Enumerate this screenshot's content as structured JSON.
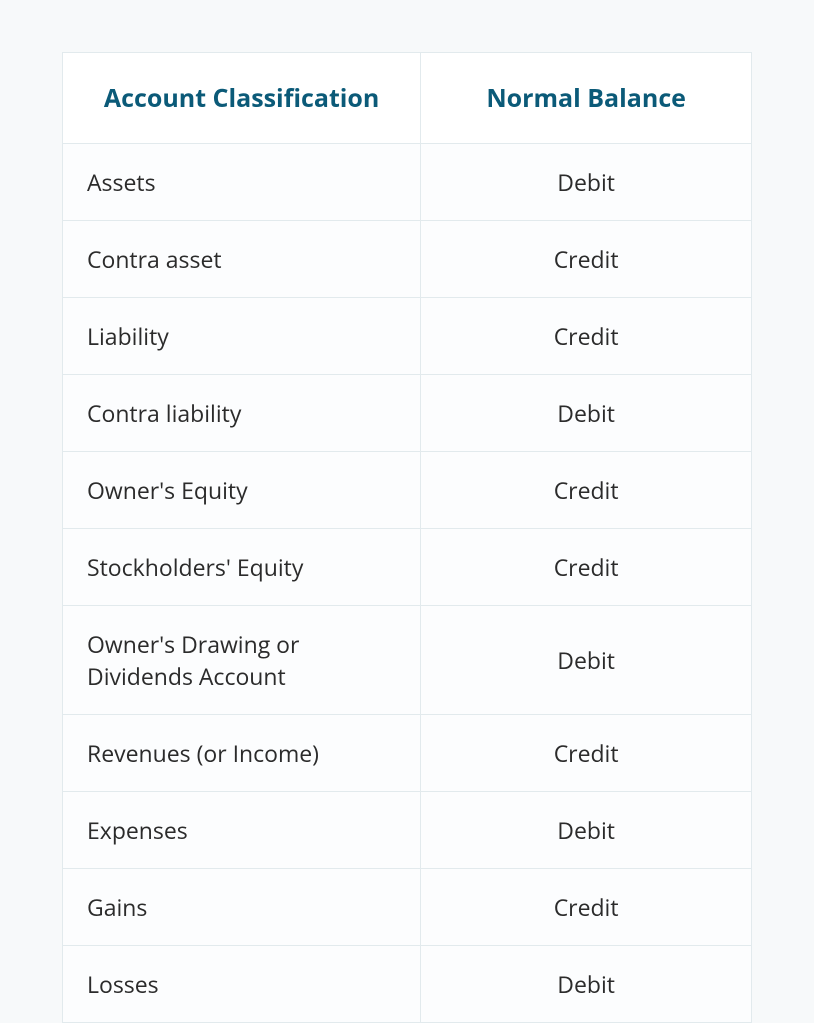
{
  "table": {
    "type": "table",
    "header_color": "#0b5a78",
    "header_fontsize": 25,
    "header_fontweight": 700,
    "body_fontsize": 23,
    "body_color": "#2b2b2b",
    "border_color": "#e2eaed",
    "row_background": "#fcfdfe",
    "header_background": "#ffffff",
    "page_background": "#f7f9fa",
    "columns": [
      {
        "label": "Account Classification",
        "align": "left",
        "width_pct": 52
      },
      {
        "label": "Normal Balance",
        "align": "center",
        "width_pct": 48
      }
    ],
    "rows": [
      {
        "classification": "Assets",
        "balance": "Debit"
      },
      {
        "classification": "Contra asset",
        "balance": "Credit"
      },
      {
        "classification": "Liability",
        "balance": "Credit"
      },
      {
        "classification": "Contra liability",
        "balance": "Debit"
      },
      {
        "classification": "Owner's Equity",
        "balance": "Credit"
      },
      {
        "classification": "Stockholders' Equity",
        "balance": "Credit"
      },
      {
        "classification": "Owner's Drawing or Dividends Account",
        "balance": "Debit"
      },
      {
        "classification": "Revenues (or Income)",
        "balance": "Credit"
      },
      {
        "classification": "Expenses",
        "balance": "Debit"
      },
      {
        "classification": "Gains",
        "balance": "Credit"
      },
      {
        "classification": "Losses",
        "balance": "Debit"
      }
    ]
  }
}
